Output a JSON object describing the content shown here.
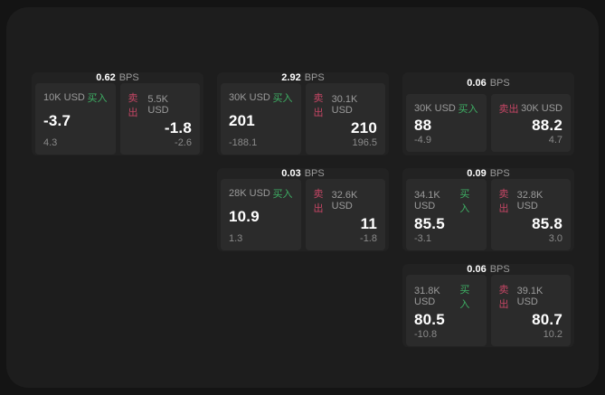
{
  "colors": {
    "outer-bg": "#141414",
    "panel-bg": "#1d1d1d",
    "card-bg": "#222222",
    "tile-bg": "#2b2b2b",
    "text-gray": "#9b9b9b",
    "text-white": "#ffffff",
    "buy-green": "#3eaf64",
    "sell-red": "#c64665"
  },
  "labels": {
    "bps_unit": "BPS",
    "buy": "买入",
    "sell": "卖出"
  },
  "cards": [
    {
      "row": 1,
      "col": 1,
      "bps": "0.62",
      "buy": {
        "amount": "10K USD",
        "price": "-3.7",
        "delta": "4.3"
      },
      "sell": {
        "amount": "5.5K USD",
        "price": "-1.8",
        "delta": "-2.6"
      }
    },
    {
      "row": 1,
      "col": 2,
      "bps": "2.92",
      "buy": {
        "amount": "30K USD",
        "price": "201",
        "delta": "-188.1"
      },
      "sell": {
        "amount": "30.1K USD",
        "price": "210",
        "delta": "196.5"
      }
    },
    {
      "row": 1,
      "col": 3,
      "bps": "0.06",
      "buy": {
        "amount": "30K USD",
        "price": "88",
        "delta": "-4.9"
      },
      "sell": {
        "amount": "30K USD",
        "price": "88.2",
        "delta": "4.7"
      }
    },
    {
      "row": 2,
      "col": 2,
      "bps": "0.03",
      "buy": {
        "amount": "28K USD",
        "price": "10.9",
        "delta": "1.3"
      },
      "sell": {
        "amount": "32.6K USD",
        "price": "11",
        "delta": "-1.8"
      }
    },
    {
      "row": 2,
      "col": 3,
      "bps": "0.09",
      "buy": {
        "amount": "34.1K USD",
        "price": "85.5",
        "delta": "-3.1"
      },
      "sell": {
        "amount": "32.8K USD",
        "price": "85.8",
        "delta": "3.0"
      }
    },
    {
      "row": 3,
      "col": 3,
      "bps": "0.06",
      "buy": {
        "amount": "31.8K USD",
        "price": "80.5",
        "delta": "-10.8"
      },
      "sell": {
        "amount": "39.1K USD",
        "price": "80.7",
        "delta": "10.2"
      }
    }
  ]
}
